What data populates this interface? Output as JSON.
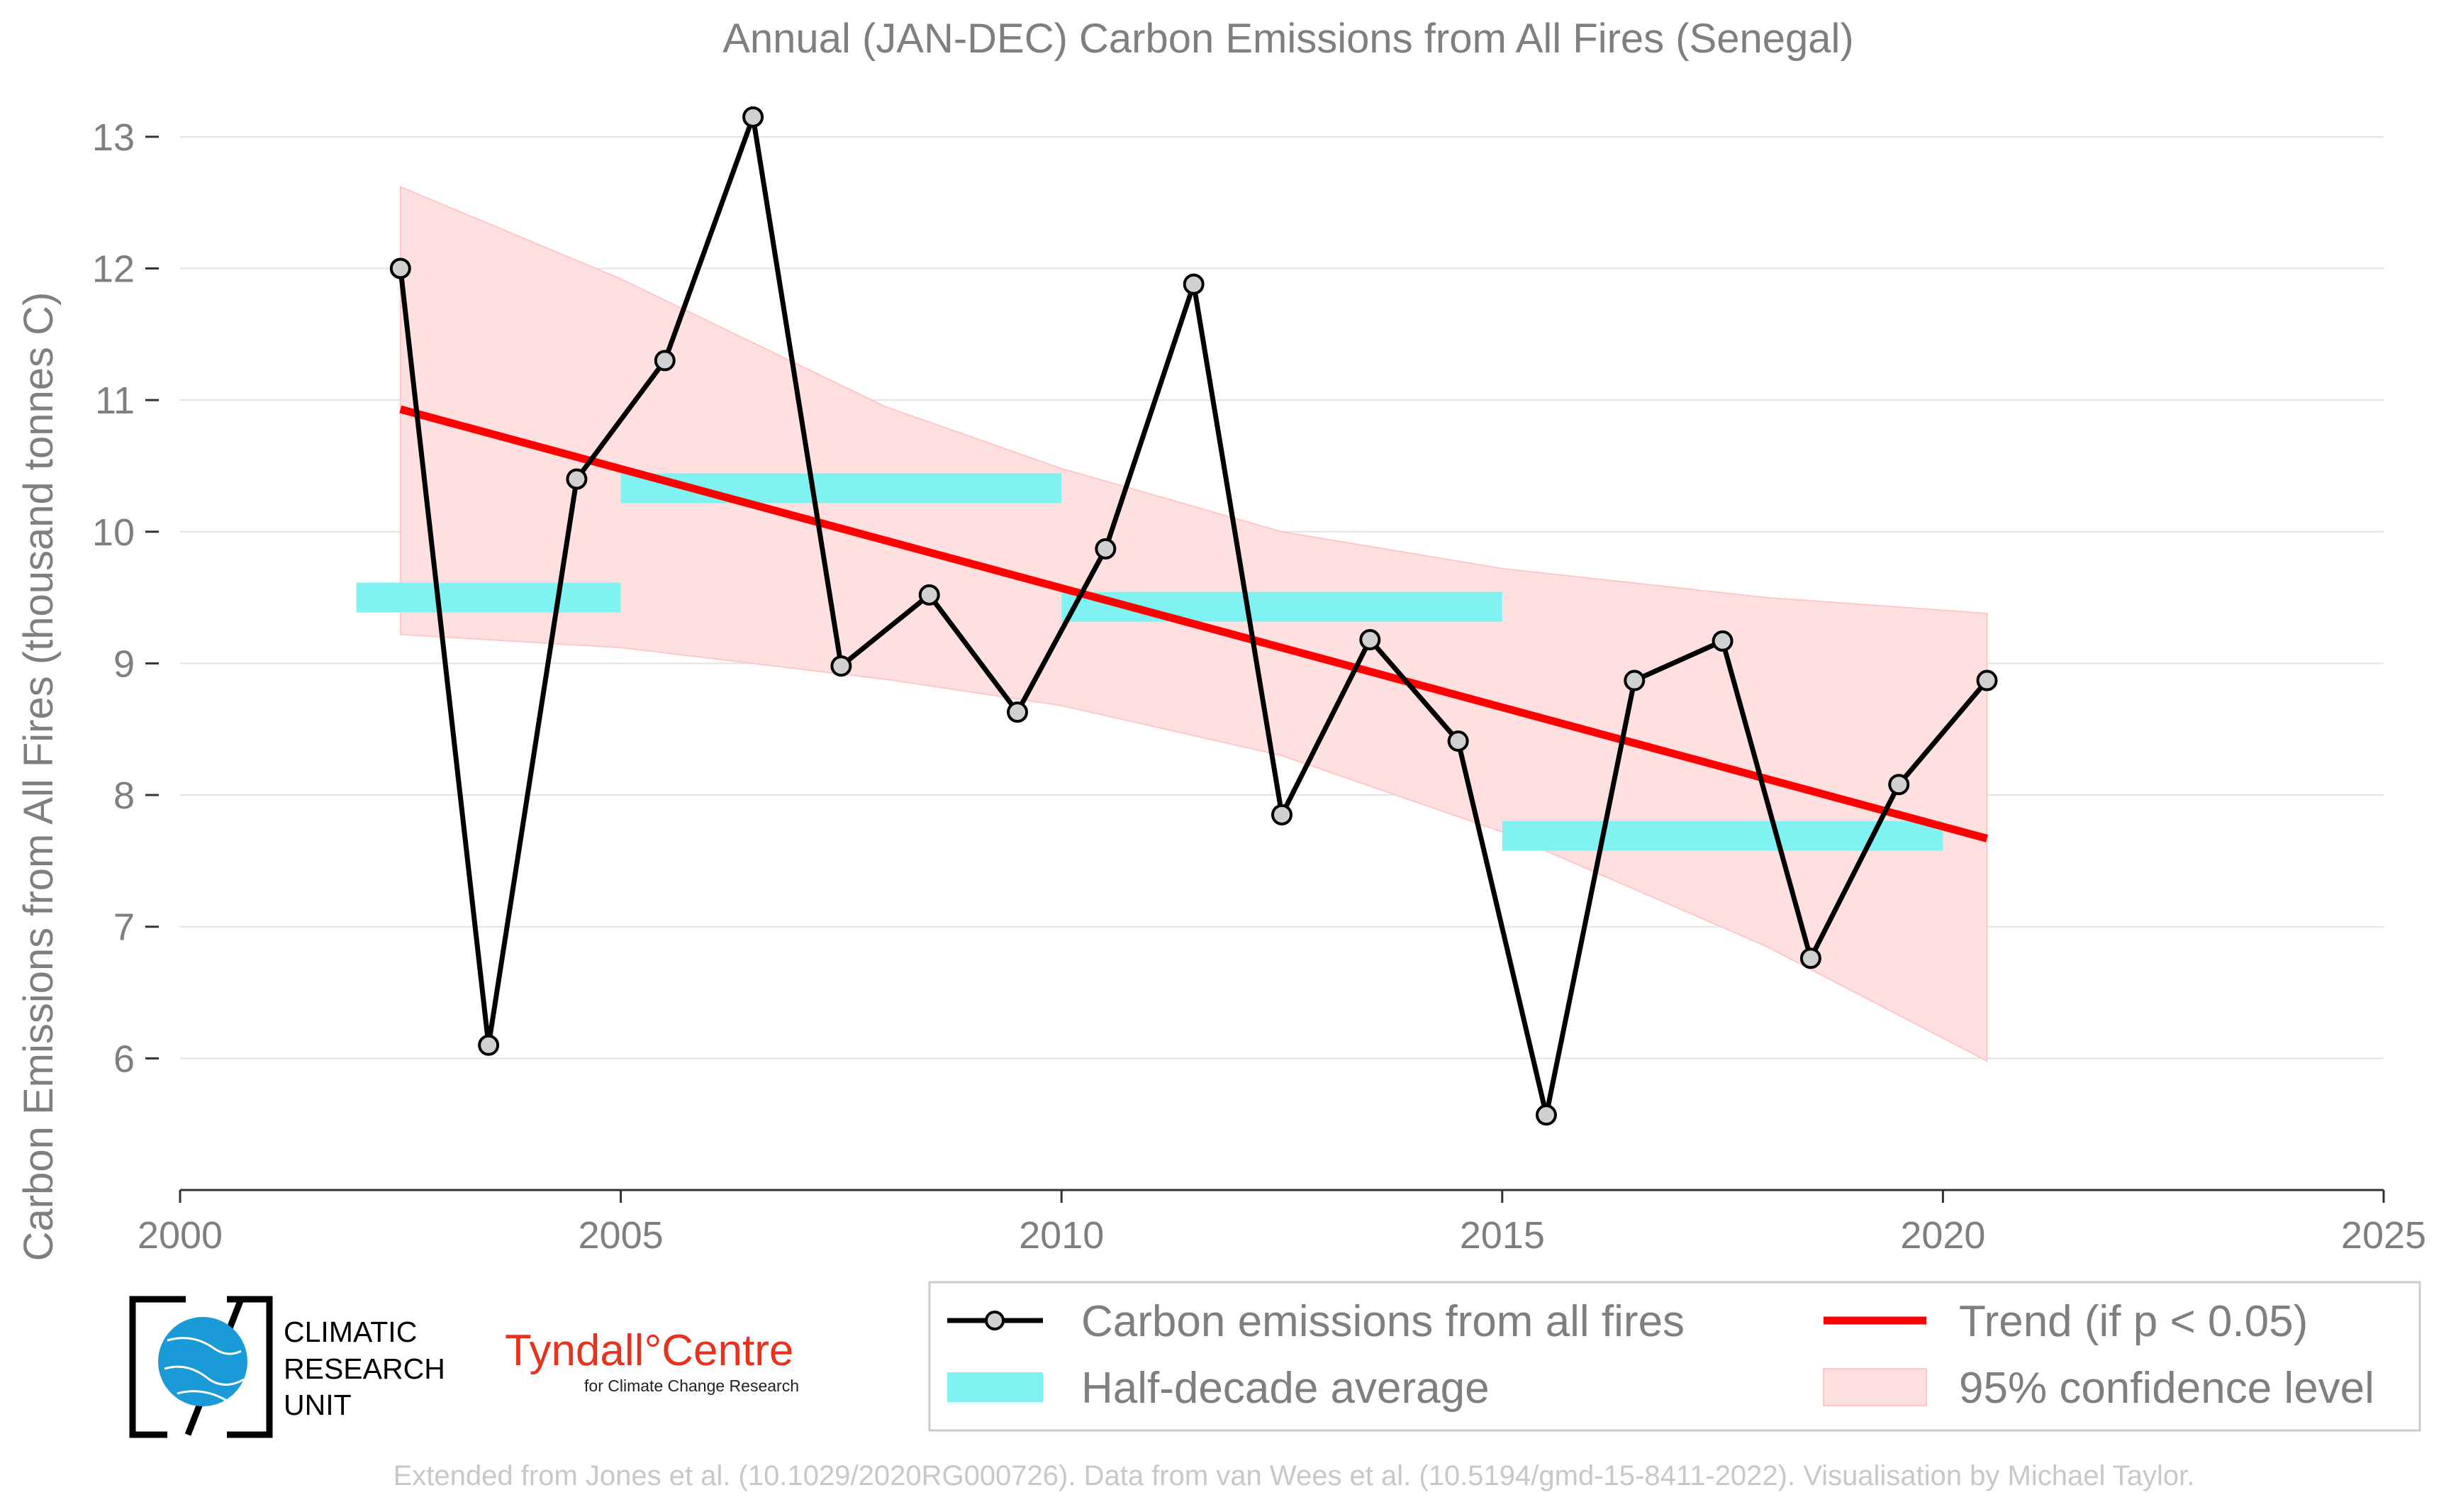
{
  "chart_data": {
    "type": "line",
    "title": "Annual (JAN-DEC) Carbon Emissions from All Fires (Senegal)",
    "xlabel": "",
    "ylabel": "Carbon Emissions from All Fires (thousand tonnes C)",
    "xlim": [
      2000,
      2025
    ],
    "ylim": [
      5,
      13.5
    ],
    "x_ticks": [
      2000,
      2005,
      2010,
      2015,
      2020,
      2025
    ],
    "y_ticks": [
      6,
      7,
      8,
      9,
      10,
      11,
      12,
      13
    ],
    "grid": "horizontal",
    "legend_placement": "bottom-right",
    "series": [
      {
        "name": "Carbon emissions from all fires",
        "color": "#000000",
        "x": [
          2002.5,
          2003.5,
          2004.5,
          2005.5,
          2006.5,
          2007.5,
          2008.5,
          2009.5,
          2010.5,
          2011.5,
          2012.5,
          2013.5,
          2014.5,
          2015.5,
          2016.5,
          2017.5,
          2018.5,
          2019.5,
          2020.5
        ],
        "values": [
          12.0,
          6.1,
          10.4,
          11.3,
          13.15,
          8.98,
          9.52,
          8.63,
          9.87,
          11.88,
          7.85,
          9.18,
          8.41,
          5.57,
          8.87,
          9.17,
          6.76,
          8.08,
          8.87
        ]
      },
      {
        "name": "Half-decade average",
        "color": "#80f2f2",
        "segments": [
          {
            "x0": 2002,
            "x1": 2005,
            "value": 9.5
          },
          {
            "x0": 2005,
            "x1": 2010,
            "value": 10.33
          },
          {
            "x0": 2010,
            "x1": 2015,
            "value": 9.43
          },
          {
            "x0": 2015,
            "x1": 2020,
            "value": 7.69
          }
        ]
      },
      {
        "name": "Trend (if p < 0.05)",
        "color": "#ff0000",
        "x": [
          2002.5,
          2020.5
        ],
        "values": [
          10.93,
          7.67
        ]
      },
      {
        "name": "95% confidence level",
        "color": "#ffc8c8",
        "x": [
          2002.5,
          2005,
          2008,
          2010,
          2012.5,
          2015,
          2018,
          2020.5
        ],
        "upper": [
          12.62,
          11.92,
          10.95,
          10.48,
          10.0,
          9.72,
          9.5,
          9.38
        ],
        "lower": [
          9.22,
          9.12,
          8.88,
          8.68,
          8.3,
          7.72,
          6.85,
          5.98
        ]
      }
    ],
    "legend": {
      "entries": [
        "Carbon emissions from all fires",
        "Trend (if p < 0.05)",
        "Half-decade average",
        "95% confidence level"
      ]
    }
  },
  "logos": {
    "cru_line1": "CLIMATIC",
    "cru_line2": "RESEARCH",
    "cru_line3": "UNIT",
    "tyndall_name": "Tyndall°Centre",
    "tyndall_sub": "for Climate Change Research"
  },
  "source": "Extended from Jones et al. (10.1029/2020RG000726). Data from van Wees et al. (10.5194/gmd-15-8411-2022). Visualisation by Michael Taylor."
}
